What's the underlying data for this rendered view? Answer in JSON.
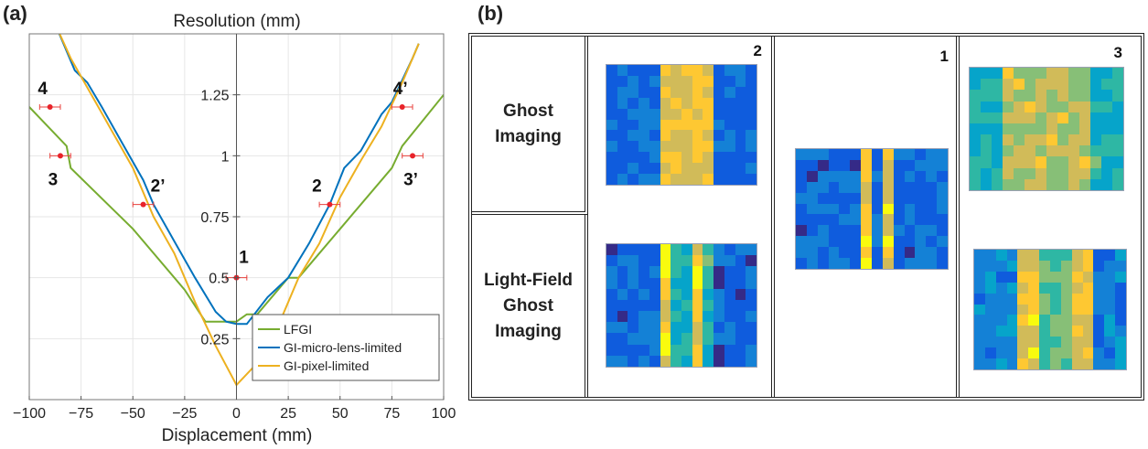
{
  "panels": {
    "a": "(a)",
    "b": "(b)"
  },
  "chart_data": {
    "type": "line",
    "title": "Resolution (mm)",
    "xlabel": "Displacement (mm)",
    "ylabel": "",
    "xlim": [
      -100,
      100
    ],
    "ylim": [
      0,
      1.5
    ],
    "xticks": [
      -100,
      -75,
      -50,
      -25,
      0,
      25,
      50,
      75,
      100
    ],
    "yticks": [
      0.25,
      0.5,
      0.75,
      1,
      1.25
    ],
    "ytick_labels": [
      "0.25",
      "0.5",
      "0.75",
      "1",
      "1.25"
    ],
    "grid": true,
    "legend_position": "bottom-right",
    "series": [
      {
        "name": "LFGI",
        "color": "#77ac30",
        "x": [
          -100,
          -82,
          -80,
          -50,
          -25,
          -15,
          0,
          5,
          10,
          25,
          30,
          50,
          75,
          80,
          100
        ],
        "y": [
          1.2,
          1.04,
          0.95,
          0.7,
          0.45,
          0.32,
          0.32,
          0.35,
          0.35,
          0.5,
          0.5,
          0.7,
          0.95,
          1.04,
          1.25
        ]
      },
      {
        "name": "GI-micro-lens-limited",
        "color": "#0072bd",
        "x": [
          -88,
          -78,
          -72,
          -65,
          -55,
          -45,
          -40,
          -30,
          -20,
          -10,
          -5,
          0,
          5,
          15,
          25,
          35,
          45,
          52,
          60,
          70,
          75,
          85,
          88
        ],
        "y": [
          1.55,
          1.35,
          1.3,
          1.2,
          1.05,
          0.9,
          0.8,
          0.65,
          0.5,
          0.36,
          0.32,
          0.31,
          0.31,
          0.42,
          0.5,
          0.64,
          0.8,
          0.95,
          1.02,
          1.17,
          1.22,
          1.4,
          1.46
        ]
      },
      {
        "name": "GI-pixel-limited",
        "color": "#edb120",
        "x": [
          -88,
          -80,
          -70,
          -60,
          -50,
          -40,
          -30,
          -20,
          -10,
          0,
          10,
          20,
          30,
          40,
          50,
          60,
          70,
          80,
          88
        ],
        "y": [
          1.55,
          1.4,
          1.25,
          1.1,
          0.95,
          0.75,
          0.6,
          0.4,
          0.22,
          0.06,
          0.15,
          0.3,
          0.5,
          0.64,
          0.83,
          0.98,
          1.12,
          1.3,
          1.46
        ]
      }
    ],
    "points": [
      {
        "label": "4",
        "x": -90,
        "y": 1.2,
        "err": 5
      },
      {
        "label": "3",
        "x": -85,
        "y": 1.0,
        "err": 5
      },
      {
        "label": "2’",
        "x": -45,
        "y": 0.8,
        "err": 5
      },
      {
        "label": "1",
        "x": 0,
        "y": 0.5,
        "err": 5
      },
      {
        "label": "2",
        "x": 45,
        "y": 0.8,
        "err": 5
      },
      {
        "label": "4’",
        "x": 80,
        "y": 1.2,
        "err": 5
      },
      {
        "label": "3’",
        "x": 85,
        "y": 1.0,
        "err": 5
      }
    ]
  },
  "table": {
    "rows": [
      {
        "label_line1": "Ghost",
        "label_line2": "Imaging"
      },
      {
        "label_line1": "Light-Field",
        "label_line2": "Ghost",
        "label_line3": "Imaging"
      }
    ],
    "columns": [
      {
        "number": "2"
      },
      {
        "number": "1"
      },
      {
        "number": "3"
      }
    ],
    "colormap": [
      "#352a87",
      "#0f5cdd",
      "#1481d6",
      "#06a4ca",
      "#2eb7a4",
      "#87bf77",
      "#d1bb59",
      "#fec832",
      "#f9fb0e"
    ]
  }
}
